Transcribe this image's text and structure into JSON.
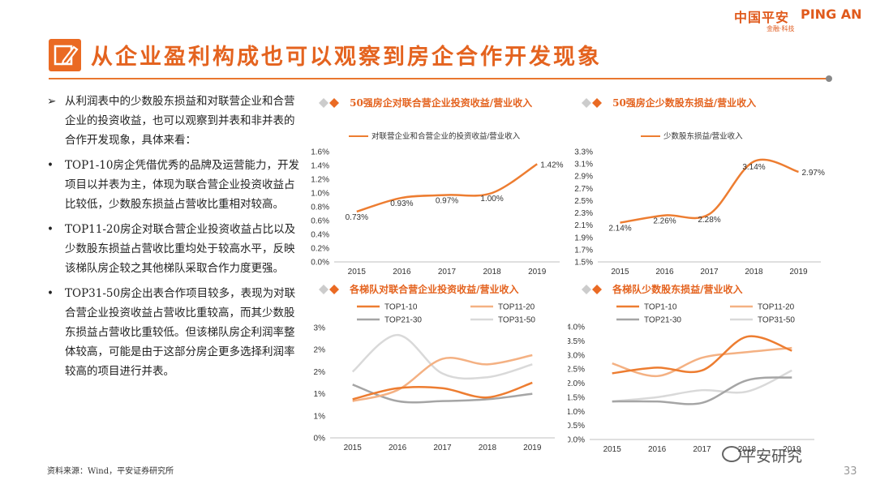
{
  "header": {
    "logo_cn": "中国平安",
    "logo_en": "PING AN",
    "logo_sub": "金融·科技",
    "title": "从企业盈利构成也可以观察到房企合作开发现象"
  },
  "body_text": [
    {
      "bullet": "➢",
      "text": "从利润表中的少数股东损益和对联营企业和合营企业的投资收益，也可以观察到并表和非并表的合作开发现象，具体来看："
    },
    {
      "bullet": "•",
      "text": "TOP1-10房企凭借优秀的品牌及运营能力，开发项目以并表为主，体现为联合营企业投资收益占比较低，少数股东损益占营收比重相对较高。"
    },
    {
      "bullet": "•",
      "text": "TOP11-20房企对联合营企业投资收益占比以及少数股东损益占营收比重均处于较高水平，反映该梯队房企较之其他梯队采取合作力度更强。"
    },
    {
      "bullet": "•",
      "text": "TOP31-50房企出表合作项目较多，表现为对联合营企业投资收益占营收比重较高，而其少数股东损益占营收比重较低。但该梯队房企利润率整体较高，可能是由于这部分房企更多选择利润率较高的项目进行并表。"
    }
  ],
  "source": "资料来源：Wind，平安证券研究所",
  "page_number": "33",
  "watermark": "平安研究",
  "colors": {
    "accent": "#ea6a23",
    "top1_10": "#ed7d31",
    "top11_20": "#f4b183",
    "top21_30": "#a5a5a5",
    "top31_50": "#d9d9d9"
  },
  "chart_data": [
    {
      "type": "line",
      "title": "50强房企对联合营企业投资收益/营业收入",
      "legend": [
        "对联营企业和合营企业的投资收益/营业收入"
      ],
      "categories": [
        "2015",
        "2016",
        "2017",
        "2018",
        "2019"
      ],
      "series": [
        {
          "name": "对联营企业和合营企业的投资收益/营业收入",
          "values": [
            0.73,
            0.93,
            0.97,
            1.0,
            1.42
          ]
        }
      ],
      "data_labels": [
        "0.73%",
        "0.93%",
        "0.97%",
        "1.00%",
        "1.42%"
      ],
      "yticks": [
        "0.0%",
        "0.2%",
        "0.4%",
        "0.6%",
        "0.8%",
        "1.0%",
        "1.2%",
        "1.4%",
        "1.6%"
      ],
      "ylim": [
        0,
        1.6
      ]
    },
    {
      "type": "line",
      "title": "50强房企少数股东损益/营业收入",
      "legend": [
        "少数股东损益/营业收入"
      ],
      "categories": [
        "2015",
        "2016",
        "2017",
        "2018",
        "2019"
      ],
      "series": [
        {
          "name": "少数股东损益/营业收入",
          "values": [
            2.14,
            2.26,
            2.28,
            3.14,
            2.97
          ]
        }
      ],
      "data_labels": [
        "2.14%",
        "2.26%",
        "2.28%",
        "3.14%",
        "2.97%"
      ],
      "yticks": [
        "1.5%",
        "1.7%",
        "1.9%",
        "2.1%",
        "2.3%",
        "2.5%",
        "2.7%",
        "2.9%",
        "3.1%",
        "3.3%"
      ],
      "ylim": [
        1.5,
        3.3
      ]
    },
    {
      "type": "line",
      "title": "各梯队对联合营企业投资收益/营业收入",
      "legend": [
        "TOP1-10",
        "TOP11-20",
        "TOP21-30",
        "TOP31-50"
      ],
      "categories": [
        "2015",
        "2016",
        "2017",
        "2018",
        "2019"
      ],
      "series": [
        {
          "name": "TOP1-10",
          "values": [
            1.05,
            1.35,
            1.35,
            1.1,
            1.5
          ]
        },
        {
          "name": "TOP11-20",
          "values": [
            1.0,
            1.3,
            2.15,
            2.0,
            2.25
          ]
        },
        {
          "name": "TOP21-30",
          "values": [
            1.45,
            1.0,
            1.0,
            1.05,
            1.2
          ]
        },
        {
          "name": "TOP31-50",
          "values": [
            1.8,
            2.8,
            1.75,
            1.65,
            2.0
          ]
        }
      ],
      "yticks": [
        "0%",
        "1%",
        "1%",
        "2%",
        "2%",
        "3%"
      ],
      "ylim": [
        0,
        3
      ]
    },
    {
      "type": "line",
      "title": "各梯队少数股东损益/营业收入",
      "legend": [
        "TOP1-10",
        "TOP11-20",
        "TOP21-30",
        "TOP31-50"
      ],
      "categories": [
        "2015",
        "2016",
        "2017",
        "2018",
        "2019"
      ],
      "series": [
        {
          "name": "TOP1-10",
          "values": [
            2.35,
            2.55,
            2.45,
            3.65,
            3.15
          ]
        },
        {
          "name": "TOP11-20",
          "values": [
            2.7,
            2.25,
            2.9,
            3.1,
            3.25
          ]
        },
        {
          "name": "TOP21-30",
          "values": [
            1.35,
            1.35,
            1.3,
            2.1,
            2.2
          ]
        },
        {
          "name": "TOP31-50",
          "values": [
            1.35,
            1.5,
            1.75,
            1.7,
            2.45
          ]
        }
      ],
      "yticks": [
        "0.0%",
        "0.5%",
        "1.0%",
        "1.5%",
        "2.0%",
        "2.5%",
        "3.0%",
        "3.5%",
        "4.0%"
      ],
      "ylim": [
        0,
        4
      ]
    }
  ]
}
